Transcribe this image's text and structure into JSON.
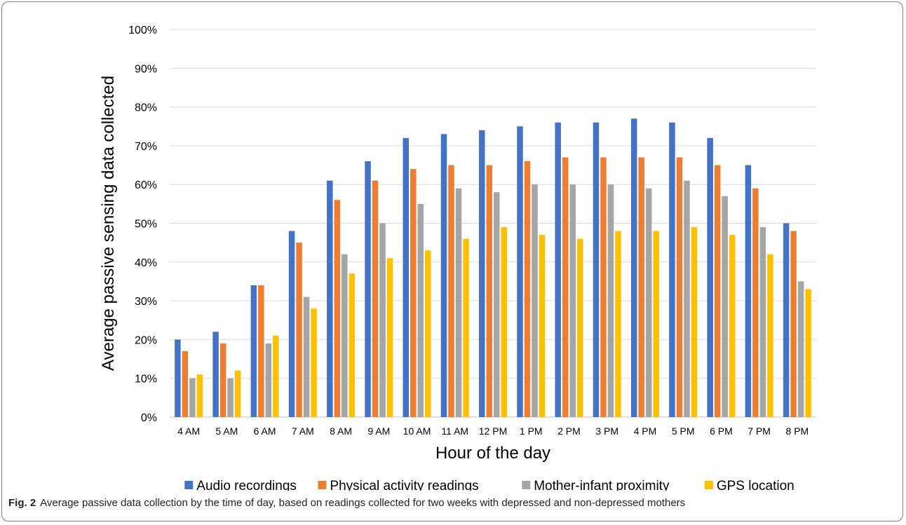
{
  "chart_data": {
    "type": "bar",
    "xlabel": "Hour of the day",
    "ylabel": "Average passive sensing data collected",
    "ylim": [
      0,
      100
    ],
    "y_unit": "%",
    "y_ticks": [
      "0%",
      "10%",
      "20%",
      "30%",
      "40%",
      "50%",
      "60%",
      "70%",
      "80%",
      "90%",
      "100%"
    ],
    "grid": true,
    "legend_position": "bottom",
    "categories": [
      "4 AM",
      "5 AM",
      "6 AM",
      "7 AM",
      "8 AM",
      "9 AM",
      "10 AM",
      "11 AM",
      "12 PM",
      "1 PM",
      "2 PM",
      "3 PM",
      "4 PM",
      "5 PM",
      "6 PM",
      "7 PM",
      "8 PM"
    ],
    "series": [
      {
        "name": "Audio recordings",
        "color": "#4472C4",
        "values": [
          20,
          22,
          34,
          48,
          61,
          66,
          72,
          73,
          74,
          75,
          76,
          76,
          77,
          76,
          72,
          65,
          50
        ]
      },
      {
        "name": "Physical activity readings",
        "color": "#ED7D31",
        "values": [
          17,
          19,
          34,
          45,
          56,
          61,
          64,
          65,
          65,
          66,
          67,
          67,
          67,
          67,
          65,
          59,
          48
        ]
      },
      {
        "name": "Mother-infant proximity",
        "color": "#A5A5A5",
        "values": [
          10,
          10,
          19,
          31,
          42,
          50,
          55,
          59,
          58,
          60,
          60,
          60,
          59,
          61,
          57,
          49,
          35
        ]
      },
      {
        "name": "GPS location",
        "color": "#FFC000",
        "values": [
          11,
          12,
          21,
          28,
          37,
          41,
          43,
          46,
          49,
          47,
          46,
          48,
          48,
          49,
          47,
          42,
          33
        ]
      }
    ]
  },
  "caption": {
    "label": "Fig. 2",
    "text": "Average passive data collection by the time of day, based on readings collected for two weeks with depressed and non-depressed mothers"
  }
}
